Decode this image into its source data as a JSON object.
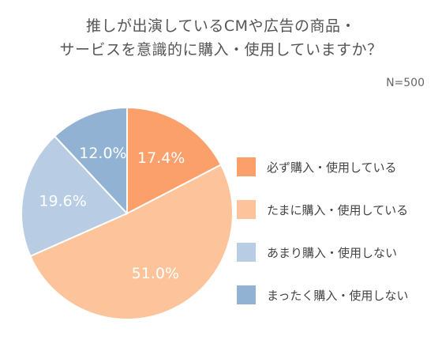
{
  "chart_data": {
    "type": "pie",
    "title_lines": [
      "推しが出演しているCMや広告の商品・",
      "サービスを意識的に購入・使用していますか？"
    ],
    "note": "N=500",
    "slices": [
      {
        "label": "必ず購入・使用している",
        "value": 17.4,
        "value_label": "17.4%",
        "color": "#fca06b"
      },
      {
        "label": "たまに購入・使用している",
        "value": 51.0,
        "value_label": "51.0%",
        "color": "#fdc49b"
      },
      {
        "label": "あまり購入・使用しない",
        "value": 19.6,
        "value_label": "19.6%",
        "color": "#b8cde4"
      },
      {
        "label": "まったく購入・使用しない",
        "value": 12.0,
        "value_label": "12.0%",
        "color": "#92b2d4"
      }
    ],
    "legend": {
      "placement": "right",
      "items": [
        "必ず購入・使用している",
        "たまに購入・使用している",
        "あまり購入・使用しない",
        "まったく購入・使用しない"
      ]
    }
  }
}
